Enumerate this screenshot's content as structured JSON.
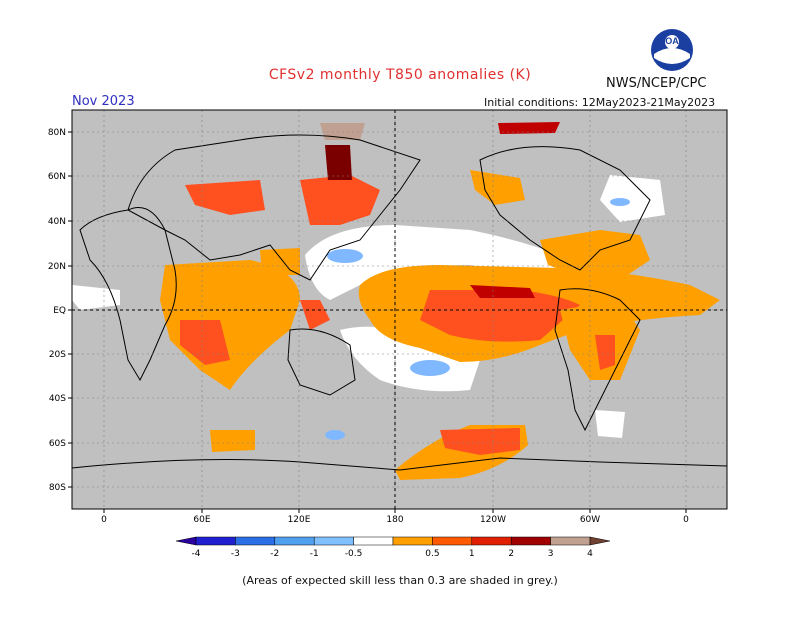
{
  "header": {
    "title": "CFSv2 monthly T850 anomalies (K)",
    "agency": "NWS/NCEP/CPC",
    "month": "Nov 2023",
    "initial_conditions": "Initial conditions: 12May2023-21May2023",
    "logo_text": "NOAA"
  },
  "map": {
    "lat_labels": [
      "80N",
      "60N",
      "40N",
      "20N",
      "EQ",
      "20S",
      "40S",
      "60S",
      "80S"
    ],
    "lon_labels": [
      "0",
      "60E",
      "120E",
      "180",
      "120W",
      "60W",
      "0"
    ],
    "colors": {
      "ocean_grey": "#c0c0c0",
      "land_outline": "#000000",
      "neutral": "#ffffff",
      "plus_05_1": "#ffa000",
      "plus_1_2": "#ff5020",
      "plus_2_3": "#c00000",
      "plus_3_4": "#7a0000",
      "plus_4": "#c0a090",
      "minus_05_1": "#80b8ff",
      "marker_text": "#000000"
    }
  },
  "legend": {
    "labels": [
      "-4",
      "-3",
      "-2",
      "-1",
      "-0.5",
      "0.5",
      "1",
      "2",
      "3",
      "4"
    ],
    "colors": [
      "#2a00a0",
      "#2020d0",
      "#2a6ee8",
      "#50a0f0",
      "#80c0ff",
      "#ffffff",
      "#ffa000",
      "#ff5a00",
      "#e02000",
      "#a00000",
      "#c0a090",
      "#704030"
    ]
  },
  "footnote": "(Areas of expected skill less than 0.3 are shaded in grey.)"
}
